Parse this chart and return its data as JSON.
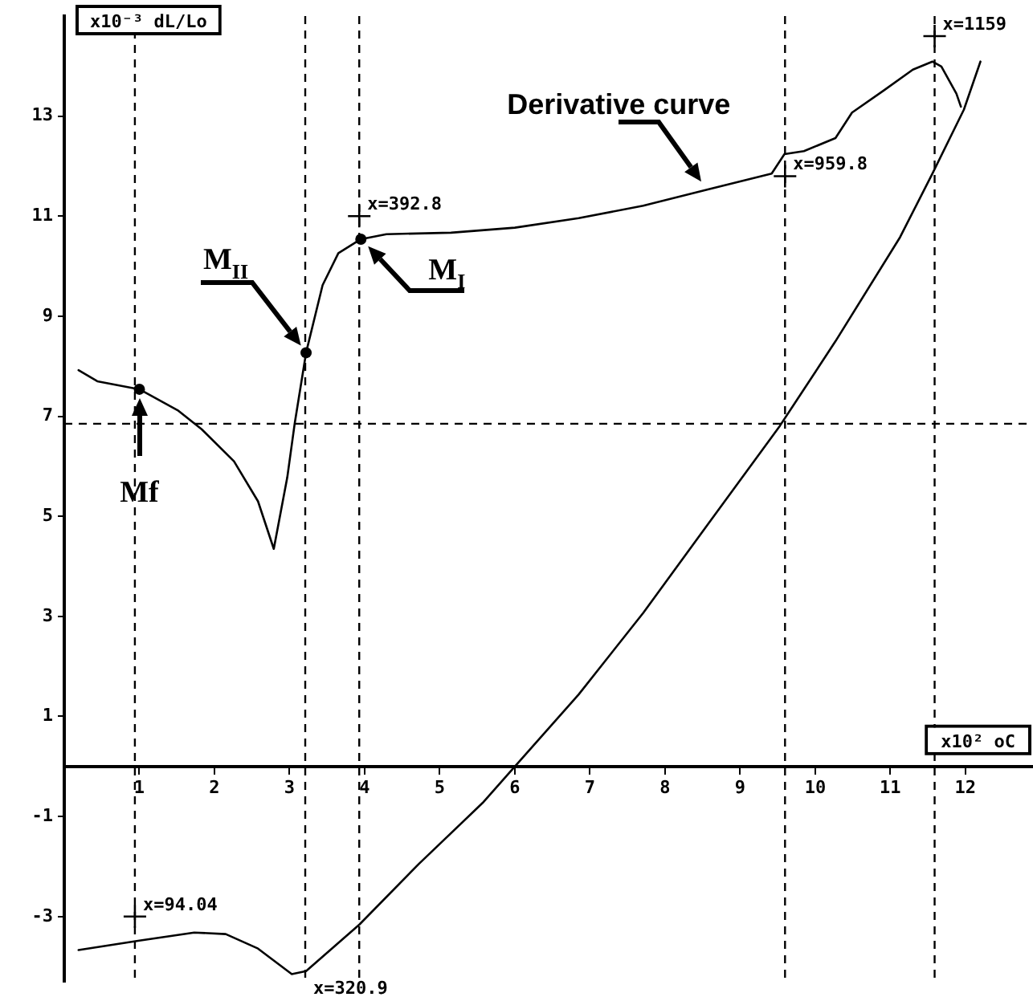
{
  "chart_data": {
    "type": "line",
    "xlabel": "x10² oC",
    "ylabel": "x10⁻³ dL/Lo",
    "xlim": [
      0,
      12.9
    ],
    "ylim": [
      -4.3,
      15
    ],
    "xticks": [
      1,
      2,
      3,
      4,
      5,
      6,
      7,
      8,
      9,
      10,
      11,
      12
    ],
    "yticks": [
      -3,
      -1,
      1,
      3,
      5,
      7,
      9,
      11,
      13
    ],
    "grid": false,
    "legend": false,
    "marker": "none",
    "line_style": "solid",
    "series": [
      {
        "color": "#000000",
        "x": [
          0.19,
          0.44,
          1,
          1.51,
          1.83,
          2.26,
          2.58,
          2.79,
          2.97,
          3.07,
          3.22,
          3.44,
          3.65,
          3.95,
          4.29,
          5.15,
          6.0,
          6.85,
          7.71,
          8.56,
          9.42,
          9.59,
          9.85,
          10.27,
          10.49,
          10.91,
          11.3,
          11.56,
          11.68,
          11.88,
          11.94
        ],
        "values": [
          7.92,
          7.7,
          7.54,
          7.12,
          6.74,
          6.1,
          5.3,
          4.35,
          5.78,
          6.87,
          8.27,
          9.62,
          10.26,
          10.54,
          10.64,
          10.67,
          10.77,
          10.96,
          11.21,
          11.53,
          11.85,
          12.24,
          12.3,
          12.56,
          13.07,
          13.51,
          13.93,
          14.09,
          13.99,
          13.45,
          13.19
        ]
      },
      {
        "color": "#000000",
        "x": [
          0.19,
          1,
          1.73,
          2.15,
          2.58,
          3.03,
          3.22,
          3.93,
          4.72,
          5.57,
          6.0,
          6.85,
          7.71,
          8.56,
          9.53,
          10.27,
          11.13,
          11.56,
          11.98,
          12.2
        ],
        "values": [
          -3.67,
          -3.48,
          -3.32,
          -3.35,
          -3.64,
          -4.15,
          -4.09,
          -3.16,
          -1.95,
          -0.73,
          0,
          1.44,
          3.07,
          4.82,
          6.81,
          8.5,
          10.58,
          11.85,
          13.13,
          14.09
        ]
      }
    ],
    "ref_lines": [
      {
        "axis": "x",
        "value": 0.9404,
        "line_style": "dashed",
        "color": "#000000"
      },
      {
        "axis": "x",
        "value": 3.209,
        "line_style": "dashed",
        "color": "#000000"
      },
      {
        "axis": "x",
        "value": 3.928,
        "line_style": "dashed",
        "color": "#000000"
      },
      {
        "axis": "x",
        "value": 9.598,
        "line_style": "dashed",
        "color": "#000000"
      },
      {
        "axis": "x",
        "value": 11.59,
        "line_style": "dashed",
        "color": "#000000"
      },
      {
        "axis": "y",
        "value": 6.85,
        "line_style": "dashed",
        "color": "#000000"
      }
    ],
    "annotations": [
      {
        "text": "x=94.04",
        "x": 0.9404,
        "y": -3.0
      },
      {
        "text": "x=320.9",
        "x": 3.209,
        "y": -4.2
      },
      {
        "text": "x=392.8",
        "x": 3.928,
        "y": 11.0
      },
      {
        "text": "x=959.8",
        "x": 9.598,
        "y": 11.8
      },
      {
        "text": "x=1159",
        "x": 11.59,
        "y": 14.6
      },
      {
        "text": "Derivative curve",
        "x": 8.56,
        "y": 11.53
      },
      {
        "text": "M$_{II}$",
        "x": 3.22,
        "y": 8.27
      },
      {
        "text": "M$_{I}$",
        "x": 3.95,
        "y": 10.54
      },
      {
        "text": "Mf",
        "x": 1,
        "y": 7.54
      }
    ]
  }
}
